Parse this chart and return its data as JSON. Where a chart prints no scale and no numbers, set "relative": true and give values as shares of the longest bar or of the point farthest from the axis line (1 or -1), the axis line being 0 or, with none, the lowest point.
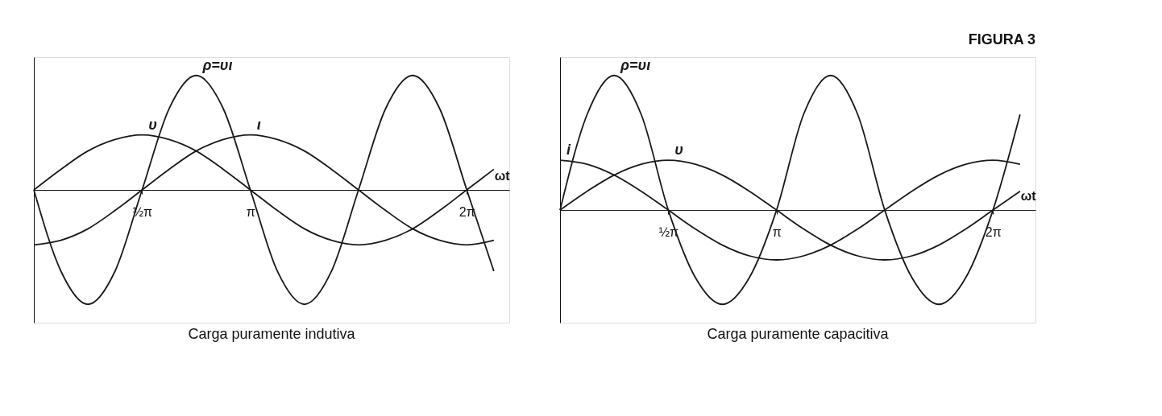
{
  "chart_data": [
    {
      "type": "line",
      "title": "Carga puramente indutiva",
      "xlabel": "ωt",
      "relative": true,
      "legend": false,
      "grid": false,
      "line_style": "solid",
      "marker": "none",
      "x": [
        0,
        0.393,
        0.785,
        1.178,
        1.571,
        1.963,
        2.356,
        2.749,
        3.142,
        3.534,
        3.927,
        4.32,
        4.712,
        5.105,
        5.498,
        5.89,
        6.283,
        6.676
      ],
      "xlim": [
        0,
        6.9
      ],
      "xticks": [
        {
          "value": 1.571,
          "label": "½π"
        },
        {
          "value": 3.142,
          "label": "π"
        },
        {
          "value": 6.283,
          "label": "2π"
        }
      ],
      "series": [
        {
          "name": "υ",
          "color": "#1a1a1a",
          "values": [
            0,
            0.18,
            0.34,
            0.44,
            0.48,
            0.44,
            0.34,
            0.18,
            0,
            -0.18,
            -0.34,
            -0.44,
            -0.48,
            -0.44,
            -0.34,
            -0.18,
            0,
            0.18
          ]
        },
        {
          "name": "ι",
          "color": "#1a1a1a",
          "values": [
            -0.48,
            -0.44,
            -0.34,
            -0.18,
            0,
            0.18,
            0.34,
            0.44,
            0.48,
            0.44,
            0.34,
            0.18,
            0,
            -0.18,
            -0.34,
            -0.44,
            -0.48,
            -0.44
          ]
        },
        {
          "name": "ρ=υι",
          "color": "#1a1a1a",
          "values": [
            0,
            -0.71,
            -1,
            -0.71,
            0,
            0.71,
            1,
            0.71,
            0,
            -0.71,
            -1,
            -0.71,
            0,
            0.71,
            1,
            0.71,
            0,
            -0.71
          ]
        }
      ]
    },
    {
      "type": "line",
      "title": "Carga puramente capacitiva",
      "xlabel": "ωt",
      "relative": true,
      "legend": false,
      "grid": false,
      "line_style": "solid",
      "marker": "none",
      "annotations": [
        "FIGURA 3"
      ],
      "x": [
        0,
        0.393,
        0.785,
        1.178,
        1.571,
        1.963,
        2.356,
        2.749,
        3.142,
        3.534,
        3.927,
        4.32,
        4.712,
        5.105,
        5.498,
        5.89,
        6.283,
        6.676
      ],
      "xlim": [
        0,
        6.9
      ],
      "xticks": [
        {
          "value": 1.571,
          "label": "½π"
        },
        {
          "value": 3.142,
          "label": "π"
        },
        {
          "value": 6.283,
          "label": "2π"
        }
      ],
      "series": [
        {
          "name": "υ",
          "color": "#1a1a1a",
          "values": [
            0,
            0.14,
            0.26,
            0.34,
            0.37,
            0.34,
            0.26,
            0.14,
            0,
            -0.14,
            -0.26,
            -0.34,
            -0.37,
            -0.34,
            -0.26,
            -0.14,
            0,
            0.14
          ]
        },
        {
          "name": "i",
          "color": "#1a1a1a",
          "values": [
            0.37,
            0.34,
            0.26,
            0.14,
            0,
            -0.14,
            -0.26,
            -0.34,
            -0.37,
            -0.34,
            -0.26,
            -0.14,
            0,
            0.14,
            0.26,
            0.34,
            0.37,
            0.34
          ]
        },
        {
          "name": "ρ=υι",
          "color": "#1a1a1a",
          "values": [
            0,
            0.71,
            1,
            0.71,
            0,
            -0.5,
            -0.7,
            -0.5,
            0,
            0.71,
            1,
            0.71,
            0,
            -0.5,
            -0.7,
            -0.5,
            0,
            0.71
          ]
        }
      ]
    }
  ]
}
